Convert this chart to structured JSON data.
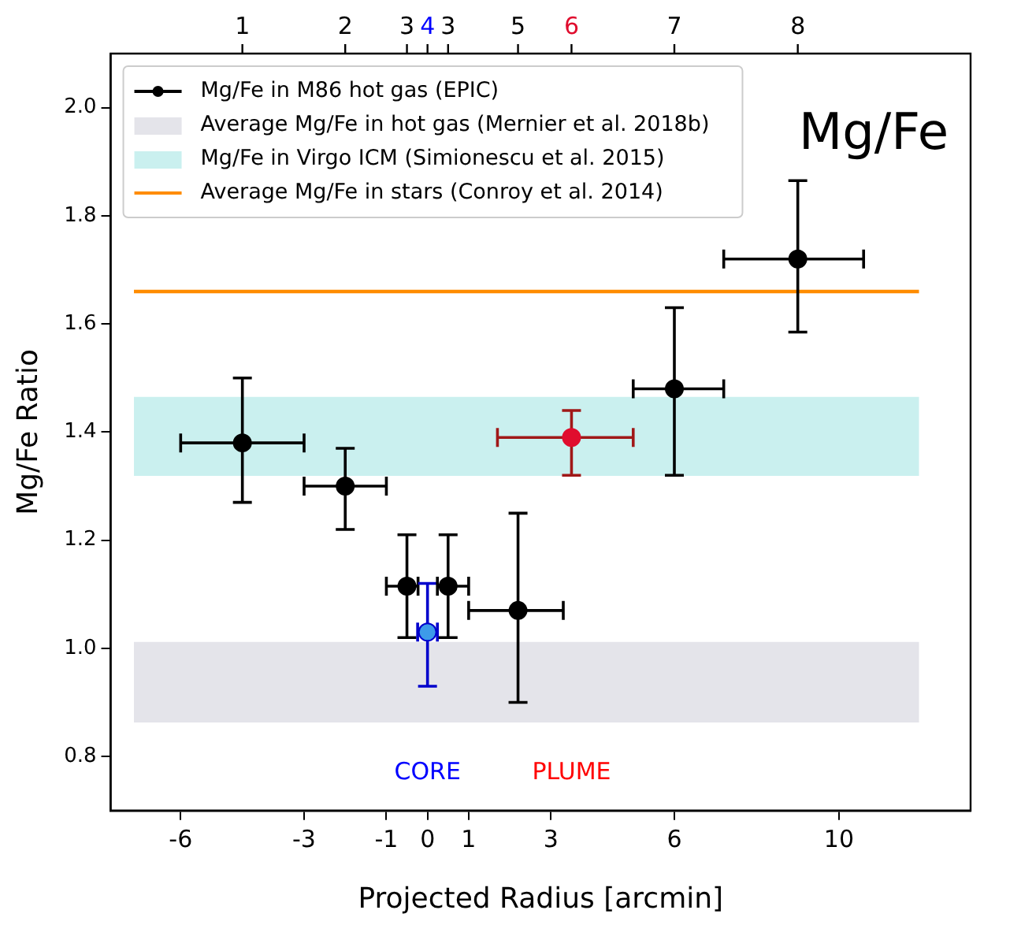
{
  "chart_data": {
    "type": "scatter",
    "xlabel": "Projected Radius [arcmin]",
    "ylabel": "Mg/Fe Ratio",
    "xlim": [
      -7.7,
      13.2
    ],
    "ylim": [
      0.7,
      2.1
    ],
    "xticks": [
      -6,
      -3,
      -1,
      0,
      1,
      3,
      6,
      10
    ],
    "yticks": [
      0.8,
      {
        "value": 1.0,
        "label": "1.0"
      },
      1.2,
      1.4,
      1.6,
      1.8,
      {
        "value": 2.0,
        "label": "2.0"
      }
    ],
    "series": [
      {
        "name": "Mg/Fe in M86 hot gas (EPIC)",
        "type": "scatter",
        "color": "#000000",
        "x": [
          -4.5,
          -2,
          -0.5,
          0,
          0.5,
          2.2,
          3.5,
          6,
          9
        ],
        "values": [
          1.38,
          1.3,
          1.115,
          1.03,
          1.115,
          1.07,
          1.39,
          1.48,
          1.72
        ],
        "errors": [
          [
            1.27,
            1.5
          ],
          [
            1.22,
            1.37
          ],
          [
            1.02,
            1.21
          ],
          [
            0.93,
            1.12
          ],
          [
            1.02,
            1.21
          ],
          [
            0.9,
            1.25
          ],
          [
            1.32,
            1.44
          ],
          [
            1.32,
            1.63
          ],
          [
            1.585,
            1.865
          ]
        ],
        "xerrors": [
          [
            -6,
            -3
          ],
          [
            -3,
            -1
          ],
          [
            -1,
            -0.23
          ],
          [
            -0.24,
            0.24
          ],
          [
            0.24,
            1
          ],
          [
            1,
            3.3
          ],
          [
            1.7,
            5
          ],
          [
            5,
            7.2
          ],
          [
            7.2,
            10.6
          ]
        ],
        "colors": [
          "#000000",
          "#000000",
          "#000000",
          "#0000cc",
          "#000000",
          "#000000",
          "#e00d2e",
          "#000000",
          "#000000"
        ]
      }
    ],
    "bands": [
      {
        "axis": "y",
        "from": 0.863,
        "to": 1.012,
        "label": "Average Mg/Fe in hot gas (Mernier et al. 2018b)",
        "color": "#e4e4ea"
      },
      {
        "axis": "y",
        "from": 1.319,
        "to": 1.465,
        "label": "Mg/Fe in Virgo ICM (Simionescu et al. 2015)",
        "color": "#7ad9d6"
      }
    ],
    "ref_lines": [
      {
        "axis": "y",
        "value": 1.66,
        "label": "Average Mg/Fe in stars (Conroy et al. 2014)",
        "color": "#ff8c00",
        "line_style": "solid"
      }
    ],
    "annotations": [
      "Mg/Fe",
      "CORE",
      "PLUME",
      "1",
      "2",
      "3",
      "4",
      "3",
      "5",
      "6",
      "7",
      "8"
    ],
    "legend": "top left",
    "grid": false,
    "marker": "circle"
  }
}
